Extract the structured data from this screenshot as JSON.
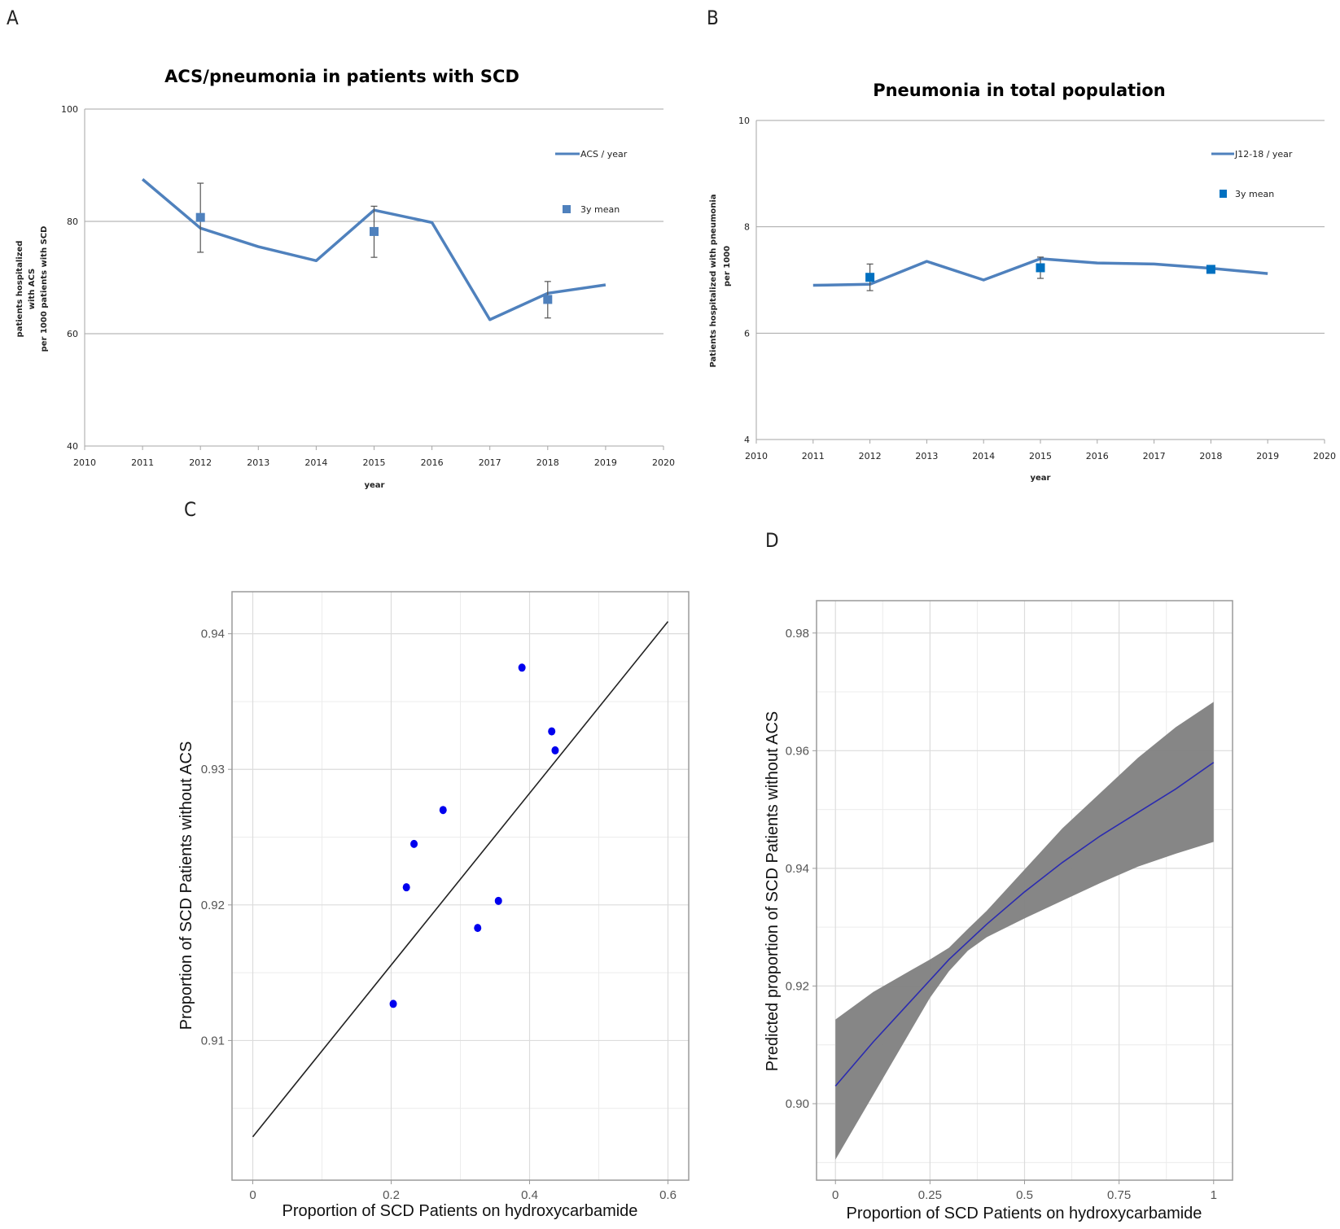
{
  "panels": {
    "a": "A",
    "b": "B",
    "c": "C",
    "d": "D"
  },
  "chart_data": [
    {
      "id": "A",
      "type": "line",
      "title": "ACS/pneumonia in patients with SCD",
      "ylabel": [
        "patients hospitalized",
        "with ACS",
        "per 1000 patients with SCD"
      ],
      "xlabel": "year",
      "xlim": [
        2010,
        2020
      ],
      "ylim": [
        40,
        100
      ],
      "xticks": [
        2010,
        2011,
        2012,
        2013,
        2014,
        2015,
        2016,
        2017,
        2018,
        2019,
        2020
      ],
      "yticks": [
        40,
        60,
        80,
        100
      ],
      "grid_y": true,
      "legend_position": "top-right",
      "series": [
        {
          "name": "ACS / year",
          "kind": "line",
          "color": "#4f81bd",
          "x": [
            2011,
            2012,
            2013,
            2014,
            2015,
            2016,
            2017,
            2018,
            2019
          ],
          "y": [
            87.5,
            78.8,
            75.5,
            73.0,
            82.0,
            79.8,
            62.5,
            67.2,
            68.7
          ]
        },
        {
          "name": "3y mean",
          "kind": "marker",
          "color": "#4f81bd",
          "x": [
            2012,
            2015,
            2018
          ],
          "y": [
            80.7,
            78.2,
            66.1
          ],
          "err_low": [
            74.5,
            73.6,
            62.8
          ],
          "err_high": [
            86.8,
            82.7,
            69.3
          ]
        }
      ]
    },
    {
      "id": "B",
      "type": "line",
      "title": "Pneumonia in total population",
      "ylabel": [
        "Patients hospitalized with pneumonia",
        "per 1000"
      ],
      "xlabel": "year",
      "xlim": [
        2010,
        2020
      ],
      "ylim": [
        4,
        10
      ],
      "xticks": [
        2010,
        2011,
        2012,
        2013,
        2014,
        2015,
        2016,
        2017,
        2018,
        2019,
        2020
      ],
      "yticks": [
        4,
        6,
        8,
        10
      ],
      "grid_y": true,
      "legend_position": "top-right",
      "series": [
        {
          "name": "J12-18 / year",
          "kind": "line",
          "color": "#4f81bd",
          "x": [
            2011,
            2012,
            2013,
            2014,
            2015,
            2016,
            2017,
            2018,
            2019
          ],
          "y": [
            6.9,
            6.92,
            7.35,
            7.0,
            7.4,
            7.32,
            7.3,
            7.22,
            7.12
          ]
        },
        {
          "name": "3y mean",
          "kind": "marker",
          "color": "#0070c0",
          "x": [
            2012,
            2015,
            2018
          ],
          "y": [
            7.05,
            7.23,
            7.2
          ],
          "err_low": [
            6.8,
            7.03,
            7.13
          ],
          "err_high": [
            7.3,
            7.43,
            7.27
          ]
        }
      ]
    },
    {
      "id": "C",
      "type": "scatter",
      "xlabel": "Proportion of SCD Patients on hydroxycarbamide",
      "ylabel": "Proportion of SCD Patients without ACS",
      "xlim": [
        -0.03,
        0.63
      ],
      "ylim": [
        0.8997,
        0.9431
      ],
      "xticks": [
        0,
        0.2,
        0.4,
        0.6
      ],
      "xtick_labels": [
        "0",
        "0.2",
        "0.4",
        "0.6"
      ],
      "yticks": [
        0.91,
        0.92,
        0.93,
        0.94
      ],
      "ytick_labels": [
        "0.91",
        "0.92",
        "0.93",
        "0.94"
      ],
      "grid": true,
      "points": {
        "color": "#0000ee",
        "x": [
          0.203,
          0.222,
          0.233,
          0.275,
          0.325,
          0.355,
          0.389,
          0.432,
          0.437
        ],
        "y": [
          0.9127,
          0.9213,
          0.9245,
          0.927,
          0.9183,
          0.9203,
          0.9375,
          0.9328,
          0.9314
        ]
      },
      "fit_line": {
        "color": "#222222",
        "x": [
          0.0,
          0.6
        ],
        "y": [
          0.9029,
          0.9409
        ]
      }
    },
    {
      "id": "D",
      "type": "line",
      "xlabel": "Proportion of SCD Patients on hydroxycarbamide",
      "ylabel": "Predicted proportion of SCD Patients without ACS",
      "xlim": [
        -0.05,
        1.05
      ],
      "ylim": [
        0.887,
        0.9855
      ],
      "xticks": [
        0,
        0.25,
        0.5,
        0.75,
        1
      ],
      "xtick_labels": [
        "0",
        "0.25",
        "0.5",
        "0.75",
        "1"
      ],
      "yticks": [
        0.9,
        0.92,
        0.94,
        0.96,
        0.98
      ],
      "ytick_labels": [
        "0.90",
        "0.92",
        "0.94",
        "0.96",
        "0.98"
      ],
      "grid": true,
      "curve": {
        "color": "#2b2bb0",
        "x": [
          0,
          0.1,
          0.2,
          0.25,
          0.3,
          0.4,
          0.5,
          0.6,
          0.7,
          0.8,
          0.9,
          1.0
        ],
        "y": [
          0.903,
          0.9105,
          0.9175,
          0.921,
          0.9245,
          0.9305,
          0.936,
          0.941,
          0.9455,
          0.9495,
          0.9535,
          0.958
        ]
      },
      "band": {
        "color": "#7f7f7f",
        "x": [
          0,
          0.1,
          0.2,
          0.25,
          0.3,
          0.35,
          0.4,
          0.5,
          0.6,
          0.7,
          0.8,
          0.9,
          1.0
        ],
        "lower": [
          0.8905,
          0.9015,
          0.9125,
          0.918,
          0.9225,
          0.926,
          0.9283,
          0.9315,
          0.9345,
          0.9375,
          0.9403,
          0.9425,
          0.9445
        ],
        "upper": [
          0.9143,
          0.919,
          0.9227,
          0.9245,
          0.9265,
          0.9297,
          0.9328,
          0.9398,
          0.9468,
          0.9528,
          0.9588,
          0.964,
          0.9683
        ]
      }
    }
  ]
}
